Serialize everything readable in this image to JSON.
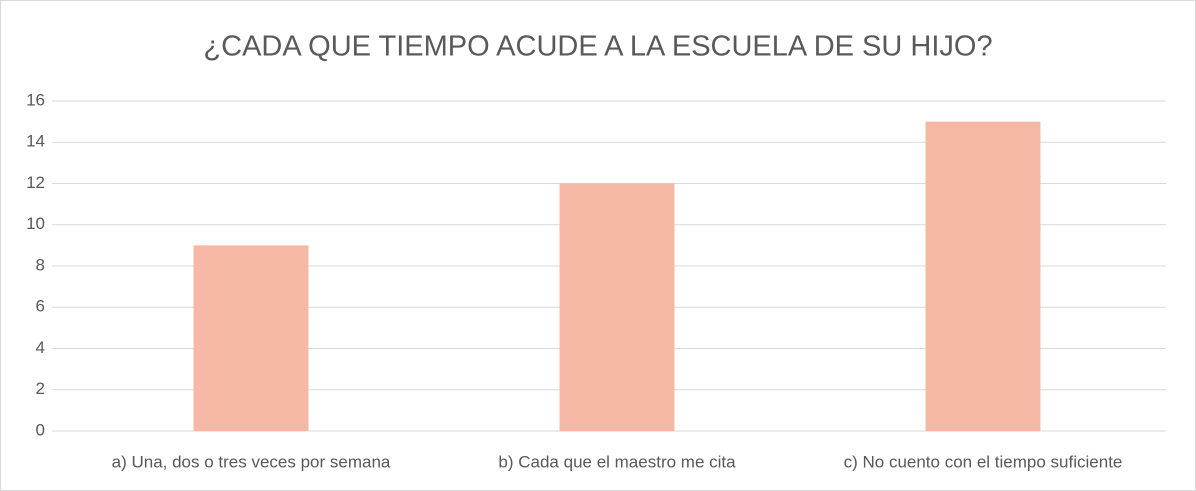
{
  "chart_data": {
    "type": "bar",
    "title": "¿CADA QUE TIEMPO ACUDE A LA ESCUELA DE SU HIJO?",
    "categories": [
      "a) Una, dos o tres veces por semana",
      "b) Cada que el maestro me cita",
      "c) No cuento con el tiempo suficiente"
    ],
    "values": [
      9,
      12,
      15
    ],
    "color": "#f4b8a4",
    "ylim": [
      0,
      16
    ],
    "yticks": [
      0,
      2,
      4,
      6,
      8,
      10,
      12,
      14,
      16
    ],
    "grid": true
  }
}
